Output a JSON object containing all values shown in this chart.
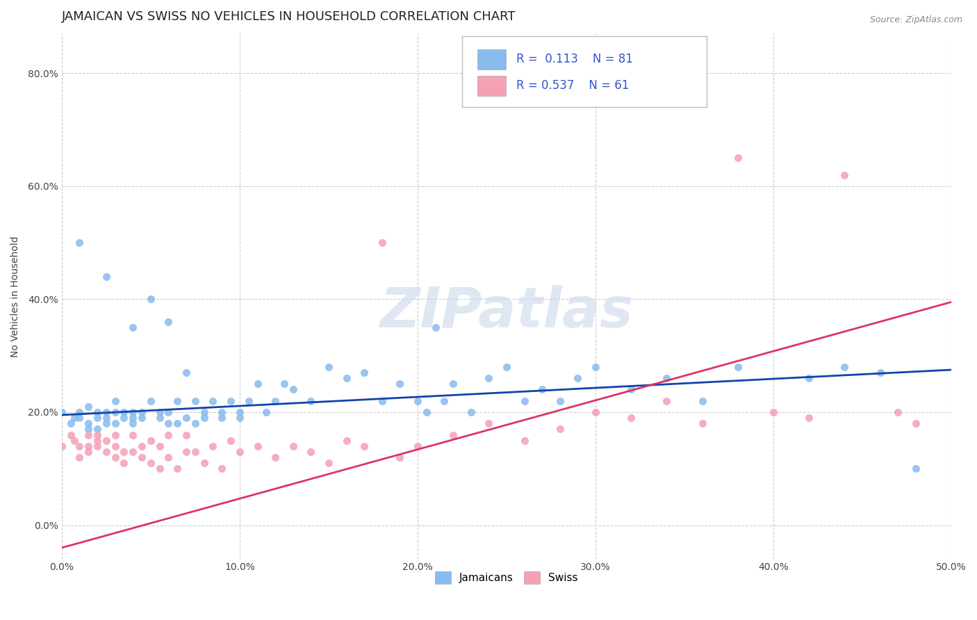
{
  "title": "JAMAICAN VS SWISS NO VEHICLES IN HOUSEHOLD CORRELATION CHART",
  "source_text": "Source: ZipAtlas.com",
  "ylabel": "No Vehicles in Household",
  "watermark": "ZIPatlas",
  "xlim": [
    0.0,
    0.5
  ],
  "ylim": [
    -0.06,
    0.87
  ],
  "xticks": [
    0.0,
    0.1,
    0.2,
    0.3,
    0.4,
    0.5
  ],
  "xticklabels": [
    "0.0%",
    "10.0%",
    "20.0%",
    "30.0%",
    "40.0%",
    "50.0%"
  ],
  "yticks": [
    0.0,
    0.2,
    0.4,
    0.6,
    0.8
  ],
  "yticklabels": [
    "0.0%",
    "20.0%",
    "40.0%",
    "60.0%",
    "80.0%"
  ],
  "grid_color": "#cccccc",
  "jamaican_color": "#88BBEE",
  "swiss_color": "#F4A0B5",
  "jamaican_line_color": "#1144AA",
  "swiss_line_color": "#DD3366",
  "R_jamaican": 0.113,
  "N_jamaican": 81,
  "R_swiss": 0.537,
  "N_swiss": 61,
  "legend_labels": [
    "Jamaicans",
    "Swiss"
  ],
  "title_fontsize": 13,
  "axis_label_fontsize": 10,
  "tick_fontsize": 10,
  "jamaican_line_x0": 0.0,
  "jamaican_line_y0": 0.195,
  "jamaican_line_x1": 0.5,
  "jamaican_line_y1": 0.275,
  "swiss_line_x0": 0.0,
  "swiss_line_y0": -0.04,
  "swiss_line_x1": 0.5,
  "swiss_line_y1": 0.395,
  "jamaican_x": [
    0.0,
    0.005,
    0.007,
    0.01,
    0.01,
    0.01,
    0.015,
    0.015,
    0.015,
    0.02,
    0.02,
    0.02,
    0.025,
    0.025,
    0.025,
    0.025,
    0.03,
    0.03,
    0.03,
    0.035,
    0.035,
    0.04,
    0.04,
    0.04,
    0.04,
    0.045,
    0.045,
    0.05,
    0.05,
    0.055,
    0.055,
    0.06,
    0.06,
    0.06,
    0.065,
    0.065,
    0.07,
    0.07,
    0.075,
    0.075,
    0.08,
    0.08,
    0.085,
    0.09,
    0.09,
    0.095,
    0.1,
    0.1,
    0.105,
    0.11,
    0.115,
    0.12,
    0.125,
    0.13,
    0.14,
    0.15,
    0.16,
    0.17,
    0.18,
    0.19,
    0.2,
    0.205,
    0.21,
    0.215,
    0.22,
    0.23,
    0.24,
    0.25,
    0.26,
    0.27,
    0.28,
    0.29,
    0.3,
    0.32,
    0.34,
    0.36,
    0.38,
    0.42,
    0.44,
    0.46,
    0.48
  ],
  "jamaican_y": [
    0.2,
    0.18,
    0.19,
    0.5,
    0.2,
    0.19,
    0.21,
    0.18,
    0.17,
    0.2,
    0.17,
    0.19,
    0.44,
    0.18,
    0.19,
    0.2,
    0.2,
    0.18,
    0.22,
    0.2,
    0.19,
    0.35,
    0.2,
    0.19,
    0.18,
    0.19,
    0.2,
    0.4,
    0.22,
    0.2,
    0.19,
    0.18,
    0.36,
    0.2,
    0.18,
    0.22,
    0.27,
    0.19,
    0.18,
    0.22,
    0.2,
    0.19,
    0.22,
    0.2,
    0.19,
    0.22,
    0.2,
    0.19,
    0.22,
    0.25,
    0.2,
    0.22,
    0.25,
    0.24,
    0.22,
    0.28,
    0.26,
    0.27,
    0.22,
    0.25,
    0.22,
    0.2,
    0.35,
    0.22,
    0.25,
    0.2,
    0.26,
    0.28,
    0.22,
    0.24,
    0.22,
    0.26,
    0.28,
    0.24,
    0.26,
    0.22,
    0.28,
    0.26,
    0.28,
    0.27,
    0.1
  ],
  "swiss_x": [
    0.0,
    0.005,
    0.007,
    0.01,
    0.01,
    0.015,
    0.015,
    0.015,
    0.02,
    0.02,
    0.02,
    0.025,
    0.025,
    0.03,
    0.03,
    0.03,
    0.035,
    0.035,
    0.04,
    0.04,
    0.045,
    0.045,
    0.05,
    0.05,
    0.055,
    0.055,
    0.06,
    0.06,
    0.065,
    0.07,
    0.07,
    0.075,
    0.08,
    0.085,
    0.09,
    0.095,
    0.1,
    0.11,
    0.12,
    0.13,
    0.14,
    0.15,
    0.16,
    0.17,
    0.18,
    0.19,
    0.2,
    0.22,
    0.24,
    0.26,
    0.28,
    0.3,
    0.32,
    0.34,
    0.36,
    0.38,
    0.4,
    0.42,
    0.44,
    0.47,
    0.48
  ],
  "swiss_y": [
    0.14,
    0.16,
    0.15,
    0.14,
    0.12,
    0.14,
    0.16,
    0.13,
    0.15,
    0.14,
    0.16,
    0.13,
    0.15,
    0.12,
    0.14,
    0.16,
    0.13,
    0.11,
    0.13,
    0.16,
    0.12,
    0.14,
    0.11,
    0.15,
    0.1,
    0.14,
    0.12,
    0.16,
    0.1,
    0.13,
    0.16,
    0.13,
    0.11,
    0.14,
    0.1,
    0.15,
    0.13,
    0.14,
    0.12,
    0.14,
    0.13,
    0.11,
    0.15,
    0.14,
    0.5,
    0.12,
    0.14,
    0.16,
    0.18,
    0.15,
    0.17,
    0.2,
    0.19,
    0.22,
    0.18,
    0.65,
    0.2,
    0.19,
    0.62,
    0.2,
    0.18
  ]
}
